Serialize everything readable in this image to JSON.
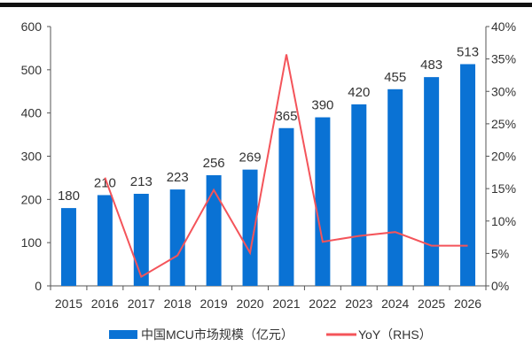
{
  "chart_data": {
    "type": "bar+line",
    "categories": [
      "2015",
      "2016",
      "2017",
      "2018",
      "2019",
      "2020",
      "2021",
      "2022",
      "2023",
      "2024",
      "2025",
      "2026"
    ],
    "series": [
      {
        "name": "中国MCU市场规模（亿元）",
        "type": "bar",
        "axis": "left",
        "color": "#0A72D4",
        "values": [
          180,
          210,
          213,
          223,
          256,
          269,
          365,
          390,
          420,
          455,
          483,
          513
        ]
      },
      {
        "name": "YoY（RHS）",
        "type": "line",
        "axis": "right",
        "color": "#F4545A",
        "values": [
          null,
          16.7,
          1.4,
          4.7,
          14.8,
          5.1,
          35.7,
          6.8,
          7.7,
          8.3,
          6.2,
          6.2
        ]
      }
    ],
    "left_axis": {
      "min": 0,
      "max": 600,
      "ticks": [
        "0",
        "100",
        "200",
        "300",
        "400",
        "500",
        "600"
      ]
    },
    "right_axis": {
      "min": 0,
      "max": 40,
      "ticks": [
        "0%",
        "5%",
        "10%",
        "15%",
        "20%",
        "25%",
        "30%",
        "35%",
        "40%"
      ]
    },
    "data_labels": true,
    "grid": false,
    "legend_placement": "bottom"
  }
}
